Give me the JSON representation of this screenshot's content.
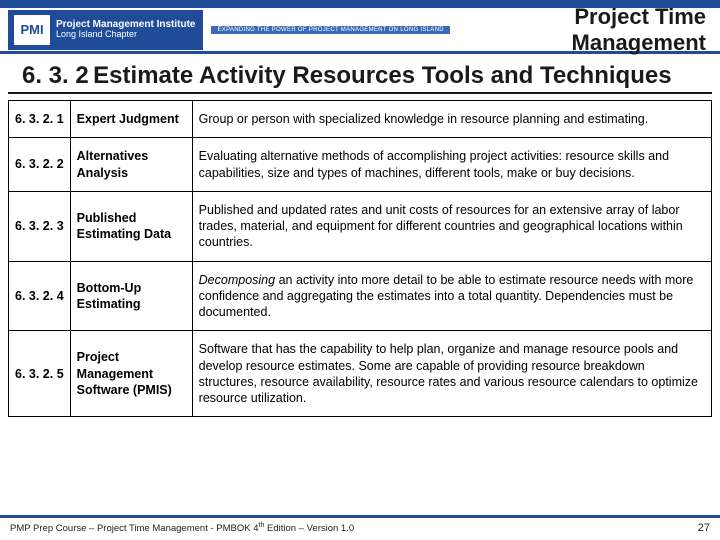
{
  "colors": {
    "brand_blue": "#1f4b99",
    "text": "#1a1a1a",
    "border": "#000000",
    "background": "#ffffff"
  },
  "logo": {
    "badge": "PMI",
    "line1": "Project Management Institute",
    "line2": "Long Island Chapter",
    "tagline": "EXPANDING THE POWER OF PROJECT MANAGEMENT ON LONG ISLAND"
  },
  "header": {
    "title": "Project Time Management"
  },
  "section": {
    "number": "6. 3. 2",
    "title": "Estimate Activity Resources Tools and Techniques"
  },
  "rows": [
    {
      "num": "6. 3. 2. 1",
      "name": "Expert Judgment",
      "desc": "Group or person with specialized knowledge in resource planning and estimating."
    },
    {
      "num": "6. 3. 2. 2",
      "name": "Alternatives Analysis",
      "desc": "Evaluating alternative methods of accomplishing project activities: resource skills and capabilities, size and types of machines, different tools, make or buy decisions."
    },
    {
      "num": "6. 3. 2. 3",
      "name": "Published Estimating Data",
      "desc": "Published and updated rates and unit costs of resources for an extensive array of labor trades, material, and equipment for different countries and geographical locations within countries."
    },
    {
      "num": "6. 3. 2. 4",
      "name": "Bottom-Up Estimating",
      "desc_italic": "Decomposing",
      "desc_rest": " an activity into more detail to be able to estimate resource needs with more confidence and aggregating the estimates into a total quantity. Dependencies must be documented."
    },
    {
      "num": "6. 3. 2. 5",
      "name": "Project Management Software (PMIS)",
      "desc": "Software that has the capability to help plan, organize and manage resource pools and develop resource estimates. Some are capable of providing resource breakdown structures, resource availability, resource rates and various resource calendars to optimize resource utilization."
    }
  ],
  "footer": {
    "left_a": "PMP Prep Course – Project Time Management - PMBOK 4",
    "left_sup": "th",
    "left_b": " Edition – Version 1.0",
    "page": "27"
  }
}
